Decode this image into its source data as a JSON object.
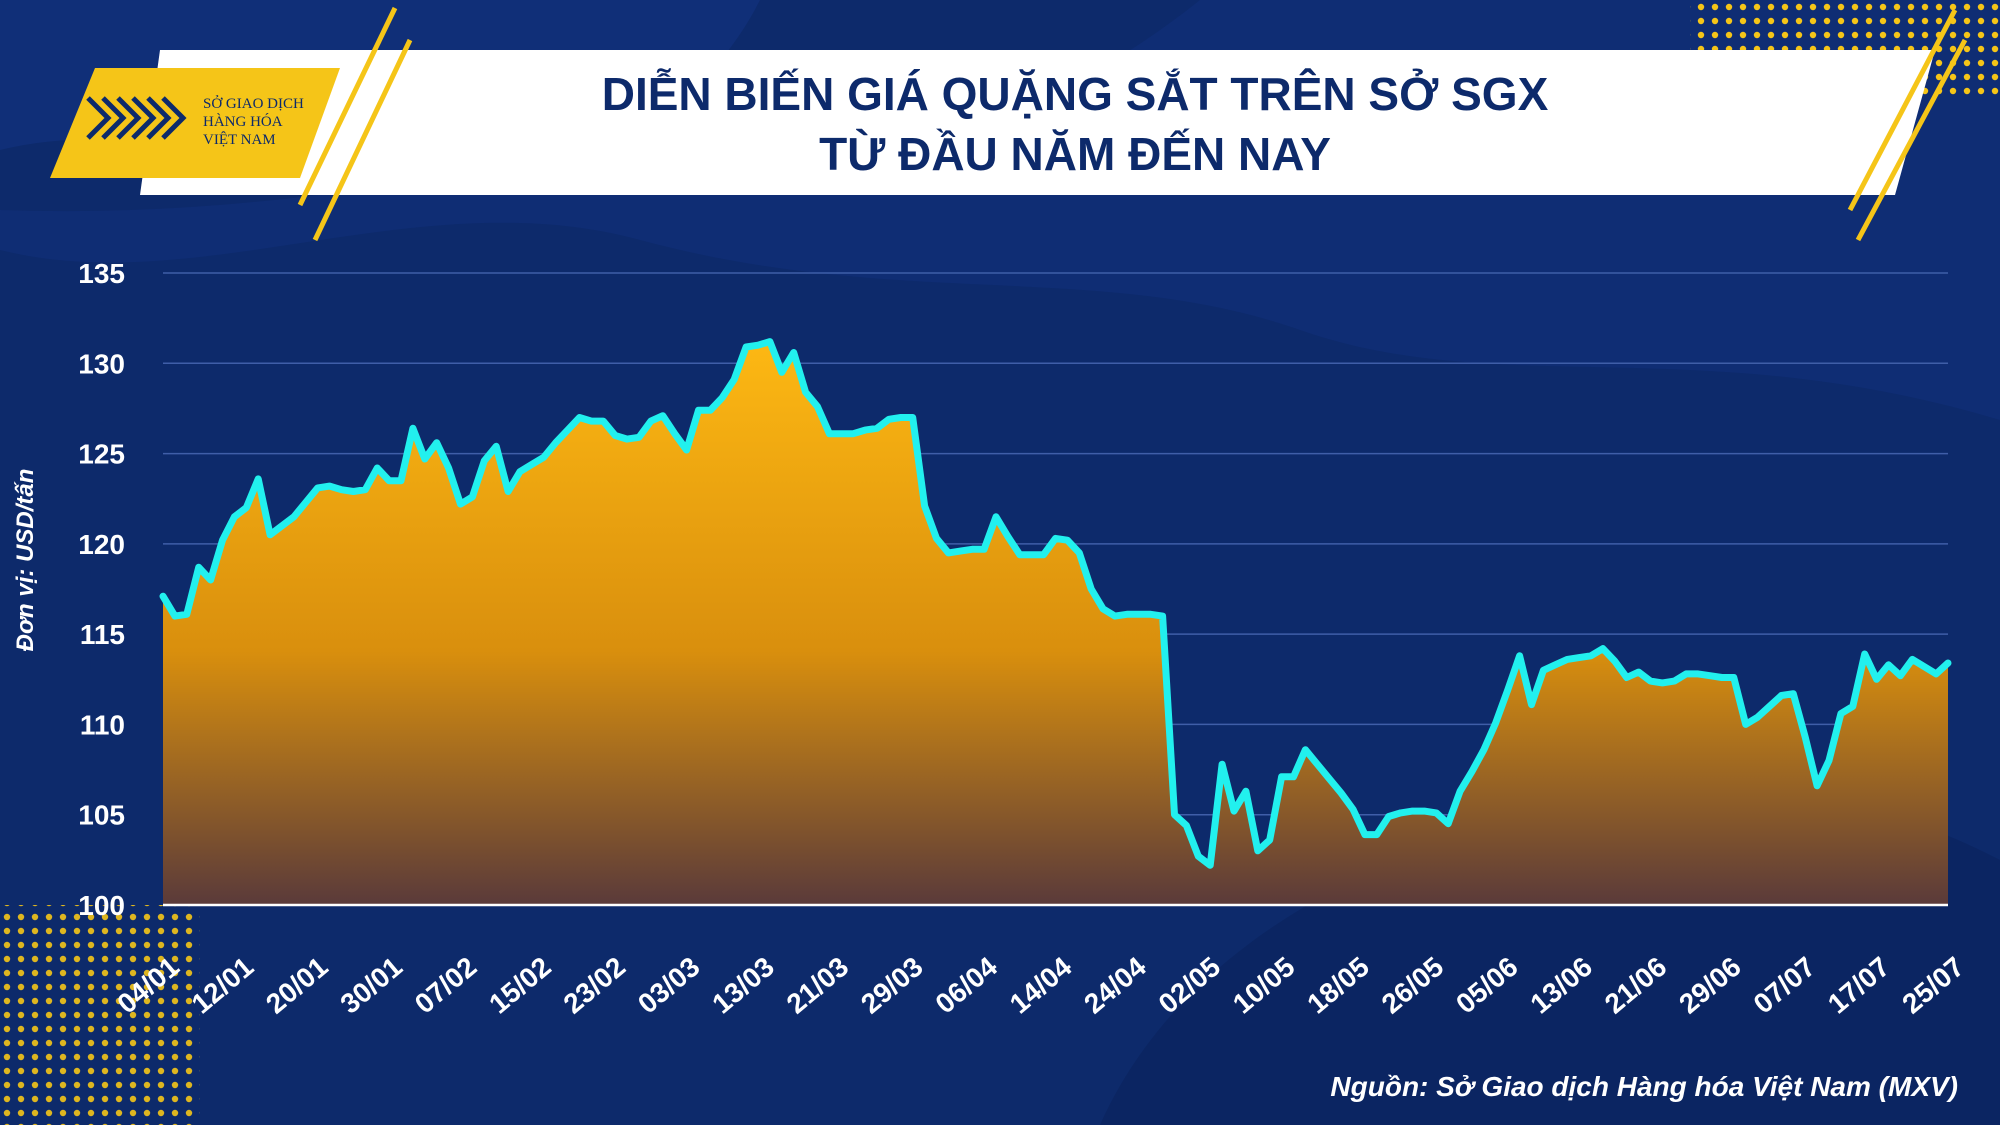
{
  "header": {
    "title_line1": "DIỄN BIẾN GIÁ QUẶNG SẮT TRÊN SỞ SGX",
    "title_line2": "TỪ ĐẦU NĂM ĐẾN NAY"
  },
  "logo": {
    "line1": "SỞ GIAO DỊCH",
    "line2": "HÀNG HÓA",
    "line3": "VIỆT NAM"
  },
  "source": "Nguồn: Sở Giao dịch Hàng hóa Việt Nam (MXV)",
  "colors": {
    "background": "#0d2a6b",
    "line": "#22f0ee",
    "fill_top": "#fdb813",
    "fill_bottom": "#5a3a3a",
    "accent": "#f5c518"
  },
  "chart_data": {
    "type": "area",
    "ylabel": "Đơn vị: USD/tấn",
    "ylim": [
      100,
      135
    ],
    "yticks": [
      100,
      105,
      110,
      115,
      120,
      125,
      130,
      135
    ],
    "grid": true,
    "xticks": [
      "04/01",
      "12/01",
      "20/01",
      "30/01",
      "07/02",
      "15/02",
      "23/02",
      "03/03",
      "13/03",
      "21/03",
      "29/03",
      "06/04",
      "14/04",
      "24/04",
      "02/05",
      "10/05",
      "18/05",
      "26/05",
      "05/06",
      "13/06",
      "21/06",
      "29/06",
      "07/07",
      "17/07",
      "25/07"
    ],
    "series": [
      {
        "values": [
          117.1,
          116.0,
          116.1,
          118.7,
          118.0,
          120.2,
          121.5,
          122.0,
          123.6,
          120.5,
          121.0,
          121.5,
          122.3,
          123.1,
          123.2,
          123.0,
          122.9,
          123.0,
          124.2,
          123.5,
          123.5,
          126.4,
          124.7,
          125.6,
          124.2,
          122.2,
          122.6,
          124.6,
          125.4,
          122.9,
          124.0,
          124.4,
          124.8,
          125.6,
          126.3,
          127.0,
          126.8,
          126.8,
          126.0,
          125.8,
          125.9,
          126.8,
          127.1,
          126.1,
          125.2,
          127.4,
          127.4,
          128.1,
          129.1,
          130.9,
          131.0,
          131.2,
          129.5,
          130.6,
          128.4,
          127.6,
          126.1,
          126.1,
          126.1,
          126.3,
          126.4,
          126.9,
          127.0,
          127.0,
          122.1,
          120.3,
          119.5,
          119.6,
          119.7,
          119.7,
          121.5,
          120.4,
          119.4,
          119.4,
          119.4,
          120.3,
          120.2,
          119.5,
          117.5,
          116.4,
          116.0,
          116.1,
          116.1,
          116.1,
          116.0,
          105.0,
          104.4,
          102.7,
          102.2,
          107.8,
          105.2,
          106.3,
          103.0,
          103.6,
          107.1,
          107.1,
          108.6,
          107.8,
          107.0,
          106.2,
          105.3,
          103.9,
          103.9,
          104.9,
          105.1,
          105.2,
          105.2,
          105.1,
          104.5,
          106.3,
          107.4,
          108.6,
          110.1,
          111.9,
          113.8,
          111.1,
          113.0,
          113.3,
          113.6,
          113.7,
          113.8,
          114.2,
          113.5,
          112.6,
          112.9,
          112.4,
          112.3,
          112.4,
          112.8,
          112.8,
          112.7,
          112.6,
          112.6,
          110.0,
          110.4,
          111.0,
          111.6,
          111.7,
          109.3,
          106.6,
          108.0,
          110.6,
          111.0,
          113.9,
          112.5,
          113.3,
          112.7,
          113.6,
          113.2,
          112.8,
          113.4
        ]
      }
    ]
  }
}
